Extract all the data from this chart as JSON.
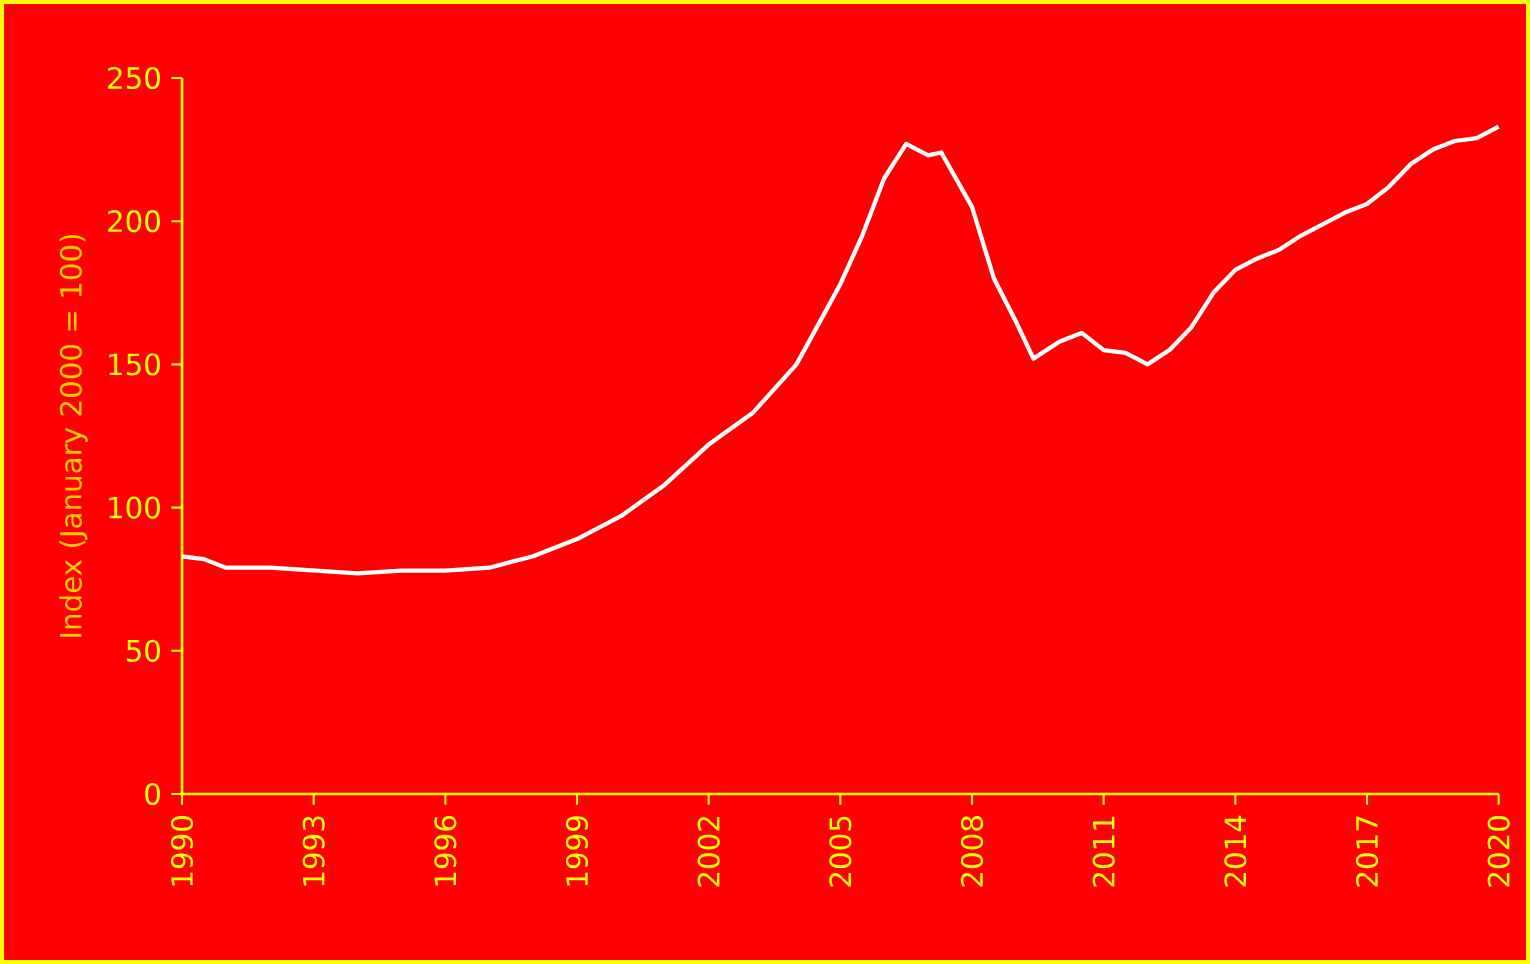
{
  "chart_data": {
    "type": "line",
    "ylabel": "Index (January 2000 = 100)",
    "xlim": [
      1990,
      2020
    ],
    "xticks": [
      1990,
      1993,
      1996,
      1999,
      2002,
      2005,
      2008,
      2011,
      2014,
      2017,
      2020
    ],
    "ylim": [
      0,
      250
    ],
    "yticks": [
      0,
      50,
      100,
      150,
      200,
      250
    ],
    "grid": false,
    "marker": "none",
    "line_style": "solid",
    "series": [
      {
        "color": "#ffffff",
        "x": [
          1990,
          1990.5,
          1991,
          1992,
          1993,
          1994,
          1995,
          1996,
          1997,
          1998,
          1999,
          2000,
          2001,
          2002,
          2003,
          2004,
          2005,
          2005.5,
          2006,
          2006.5,
          2007,
          2007.3,
          2008,
          2008.5,
          2009,
          2009.4,
          2010,
          2010.5,
          2011,
          2011.5,
          2012,
          2012.5,
          2013,
          2013.5,
          2014,
          2014.5,
          2015,
          2015.5,
          2016,
          2016.5,
          2017,
          2017.5,
          2018,
          2018.5,
          2019,
          2019.5,
          2020
        ],
        "values": [
          83,
          82,
          79,
          79,
          78,
          77,
          78,
          78,
          79,
          83,
          89,
          97,
          108,
          122,
          133,
          150,
          178,
          195,
          215,
          227,
          223,
          224,
          205,
          180,
          165,
          152,
          158,
          161,
          155,
          154,
          150,
          155,
          163,
          175,
          183,
          187,
          190,
          195,
          199,
          203,
          206,
          212,
          220,
          225,
          228,
          229,
          233
        ]
      }
    ]
  }
}
